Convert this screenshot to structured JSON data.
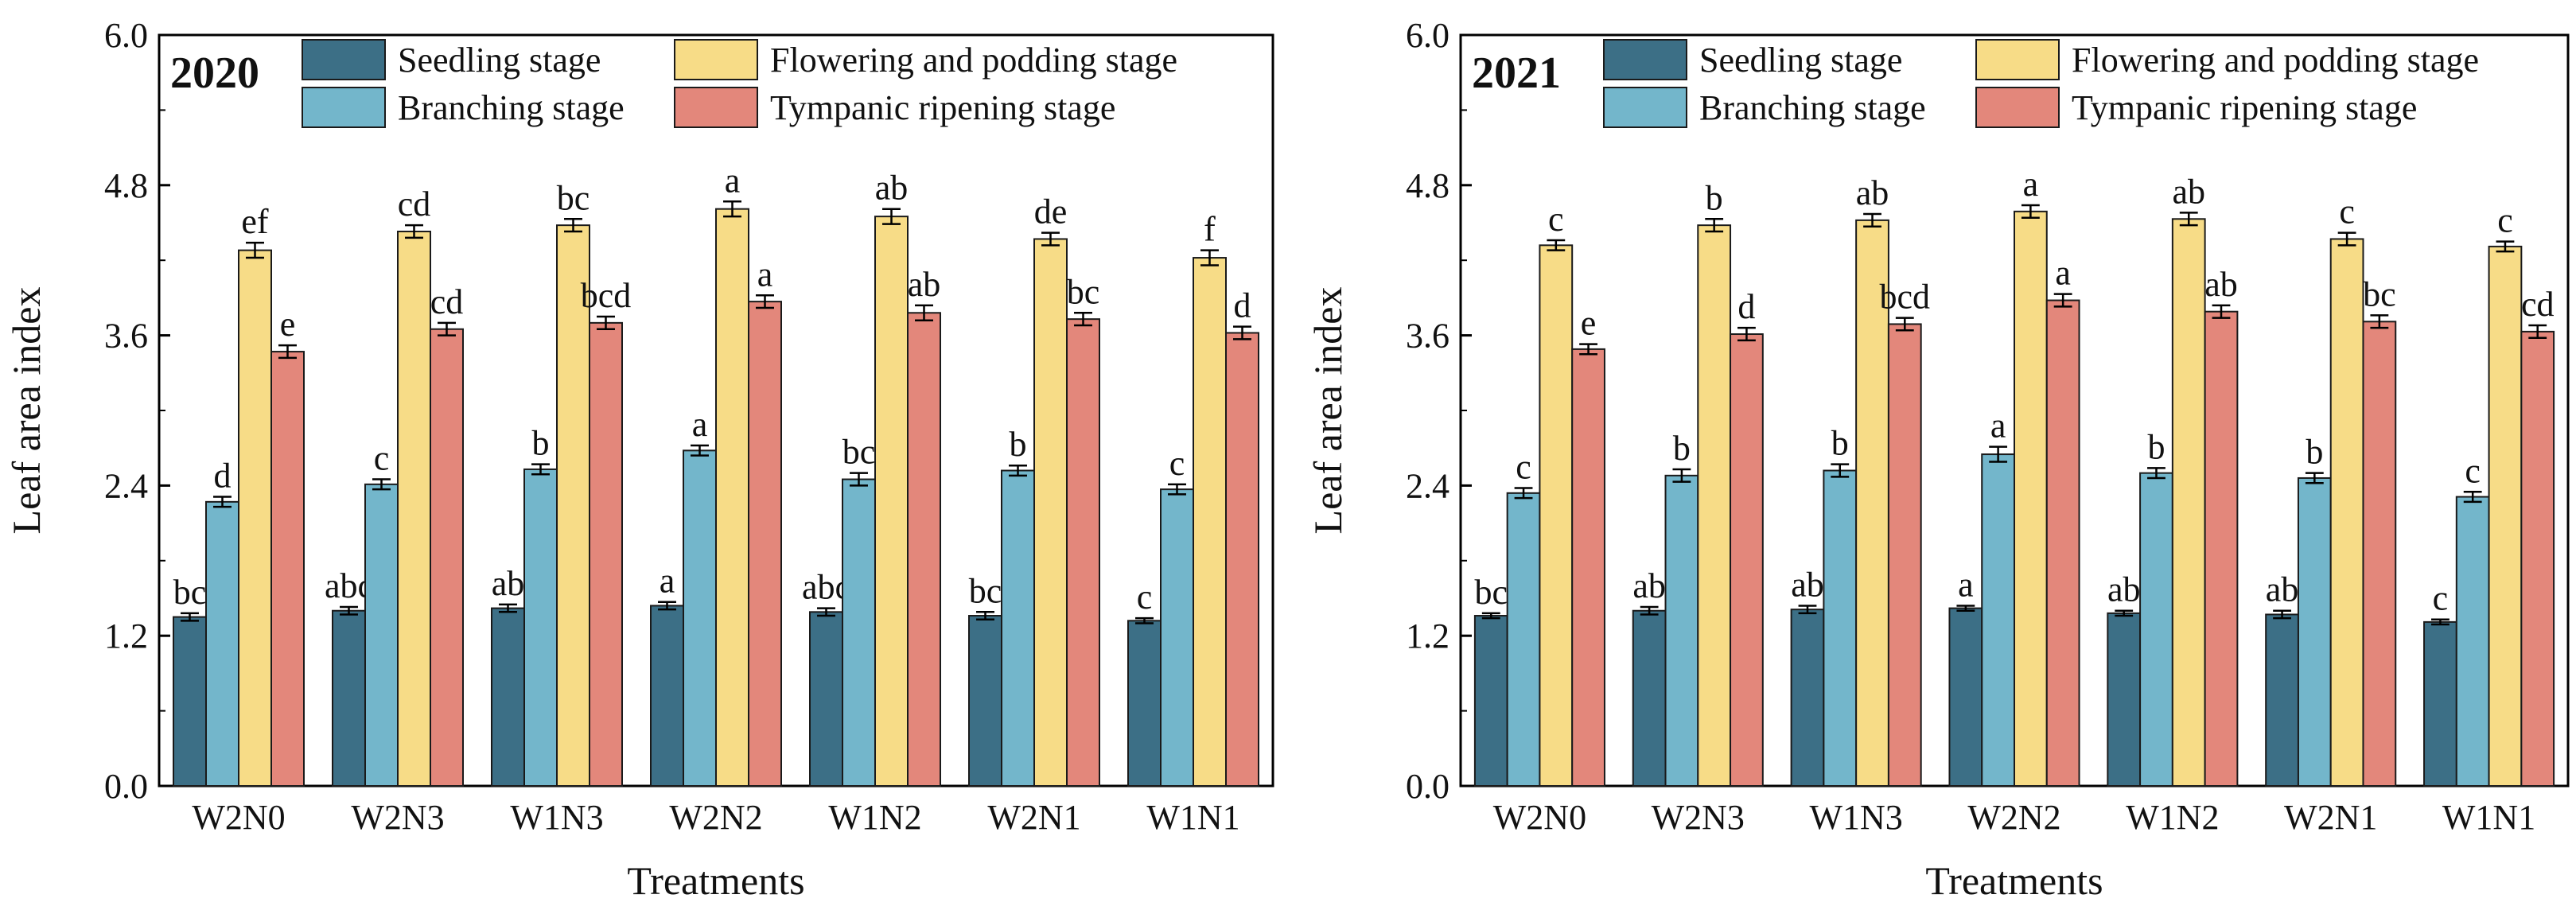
{
  "colors": {
    "Seedling stage": "#3c6f86",
    "Branching stage": "#73b6cb",
    "Flowering and podding stage": "#f7dc87",
    "Tympanic ripening stage": "#e3877b"
  },
  "chart_data": [
    {
      "type": "bar",
      "title": "2020",
      "xlabel": "Treatments",
      "ylabel": "Leaf area index",
      "ylim": [
        0,
        6.0
      ],
      "yticks": [
        "0.0",
        "1.2",
        "2.4",
        "3.6",
        "4.8",
        "6.0"
      ],
      "legend_position": "top",
      "categories": [
        "W2N0",
        "W2N3",
        "W1N3",
        "W2N2",
        "W1N2",
        "W2N1",
        "W1N1"
      ],
      "series": [
        {
          "name": "Seedling stage",
          "values": [
            1.35,
            1.4,
            1.42,
            1.44,
            1.39,
            1.36,
            1.32
          ],
          "errors": [
            0.03,
            0.03,
            0.03,
            0.03,
            0.03,
            0.03,
            0.02
          ],
          "labels": [
            "bc",
            "abc",
            "ab",
            "a",
            "abc",
            "bc",
            "c"
          ]
        },
        {
          "name": "Branching stage",
          "values": [
            2.27,
            2.41,
            2.53,
            2.68,
            2.45,
            2.52,
            2.37
          ],
          "errors": [
            0.04,
            0.04,
            0.04,
            0.04,
            0.05,
            0.04,
            0.04
          ],
          "labels": [
            "d",
            "c",
            "b",
            "a",
            "bc",
            "b",
            "c"
          ]
        },
        {
          "name": "Flowering and podding stage",
          "values": [
            4.28,
            4.43,
            4.48,
            4.61,
            4.55,
            4.37,
            4.22
          ],
          "errors": [
            0.06,
            0.05,
            0.05,
            0.06,
            0.06,
            0.05,
            0.06
          ],
          "labels": [
            "ef",
            "cd",
            "bc",
            "a",
            "ab",
            "de",
            "f"
          ]
        },
        {
          "name": "Tympanic ripening stage",
          "values": [
            3.47,
            3.65,
            3.7,
            3.87,
            3.78,
            3.73,
            3.62
          ],
          "errors": [
            0.05,
            0.05,
            0.05,
            0.05,
            0.06,
            0.05,
            0.05
          ],
          "labels": [
            "e",
            "cd",
            "bcd",
            "a",
            "ab",
            "bc",
            "d"
          ]
        }
      ]
    },
    {
      "type": "bar",
      "title": "2021",
      "xlabel": "Treatments",
      "ylabel": "Leaf area index",
      "ylim": [
        0,
        6.0
      ],
      "yticks": [
        "0.0",
        "1.2",
        "2.4",
        "3.6",
        "4.8",
        "6.0"
      ],
      "legend_position": "top",
      "categories": [
        "W2N0",
        "W2N3",
        "W1N3",
        "W2N2",
        "W1N2",
        "W2N1",
        "W1N1"
      ],
      "series": [
        {
          "name": "Seedling stage",
          "values": [
            1.36,
            1.4,
            1.41,
            1.42,
            1.38,
            1.37,
            1.31
          ],
          "errors": [
            0.02,
            0.03,
            0.03,
            0.02,
            0.02,
            0.03,
            0.02
          ],
          "labels": [
            "bc",
            "ab",
            "ab",
            "a",
            "ab",
            "ab",
            "c"
          ]
        },
        {
          "name": "Branching stage",
          "values": [
            2.34,
            2.48,
            2.52,
            2.65,
            2.5,
            2.46,
            2.31
          ],
          "errors": [
            0.04,
            0.05,
            0.05,
            0.06,
            0.04,
            0.04,
            0.04
          ],
          "labels": [
            "c",
            "b",
            "b",
            "a",
            "b",
            "b",
            "c"
          ]
        },
        {
          "name": "Flowering and podding stage",
          "values": [
            4.32,
            4.48,
            4.52,
            4.59,
            4.53,
            4.37,
            4.31
          ],
          "errors": [
            0.04,
            0.05,
            0.05,
            0.05,
            0.05,
            0.05,
            0.04
          ],
          "labels": [
            "c",
            "b",
            "ab",
            "a",
            "ab",
            "c",
            "c"
          ]
        },
        {
          "name": "Tympanic ripening stage",
          "values": [
            3.49,
            3.61,
            3.69,
            3.88,
            3.79,
            3.71,
            3.63
          ],
          "errors": [
            0.04,
            0.05,
            0.05,
            0.05,
            0.05,
            0.05,
            0.05
          ],
          "labels": [
            "e",
            "d",
            "bcd",
            "a",
            "ab",
            "bc",
            "cd"
          ]
        }
      ]
    }
  ]
}
